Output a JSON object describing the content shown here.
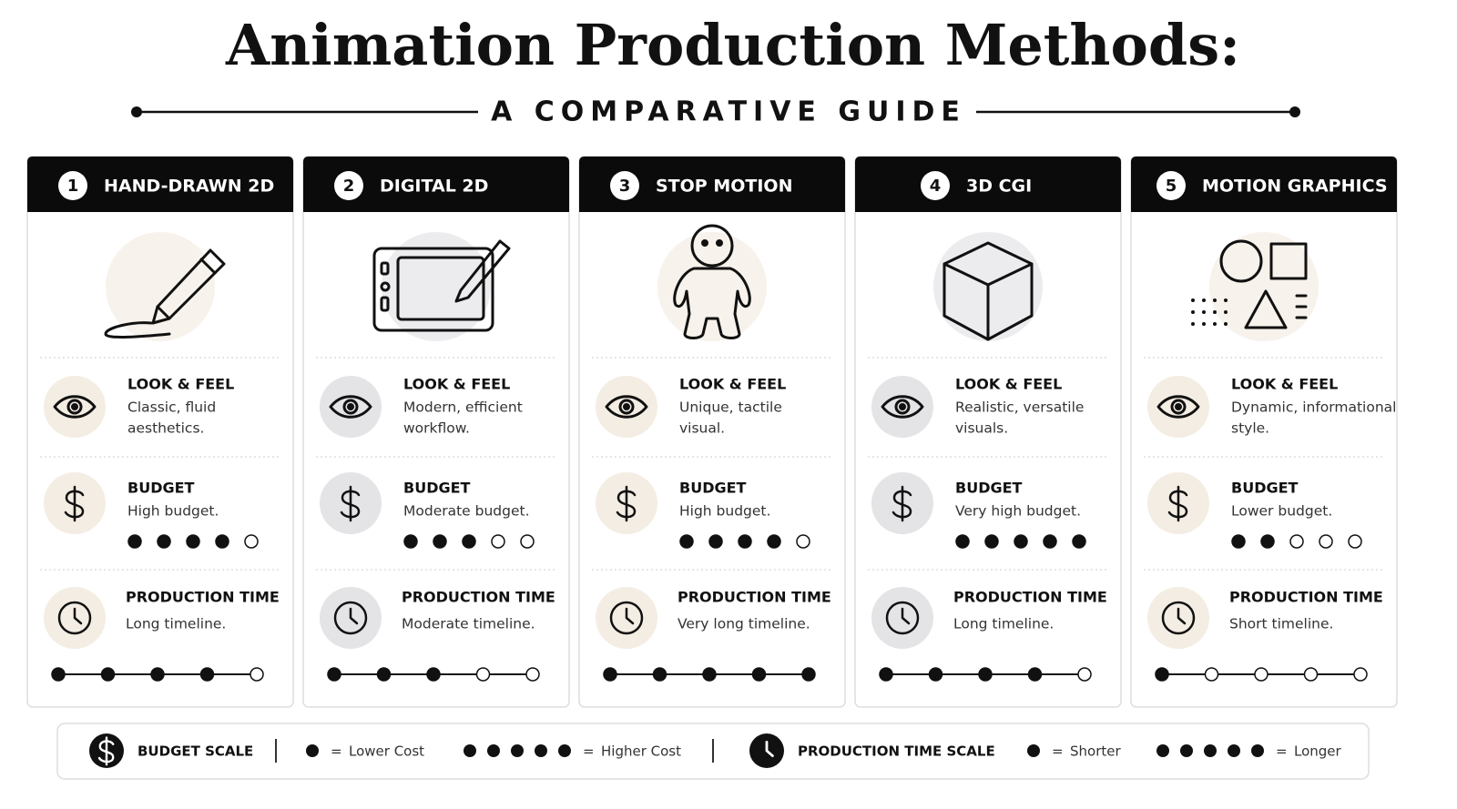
{
  "header": {
    "title": "Animation Production Methods:",
    "subtitle": "A COMPARATIVE GUIDE"
  },
  "methods": [
    {
      "number": "1",
      "name": "HAND-DRAWN 2D",
      "look_label": "LOOK & FEEL",
      "look_text": [
        "Classic, fluid",
        "aesthetics."
      ],
      "budget_label": "BUDGET",
      "budget_text": "High budget.",
      "budget_rating": 4,
      "time_label": "PRODUCTION TIME",
      "time_text": "Long timeline.",
      "time_rating": 4
    },
    {
      "number": "2",
      "name": "DIGITAL 2D",
      "look_label": "LOOK & FEEL",
      "look_text": [
        "Modern, efficient",
        "workflow."
      ],
      "budget_label": "BUDGET",
      "budget_text": "Moderate budget.",
      "budget_rating": 3,
      "time_label": "PRODUCTION TIME",
      "time_text": "Moderate timeline.",
      "time_rating": 3
    },
    {
      "number": "3",
      "name": "STOP MOTION",
      "look_label": "LOOK & FEEL",
      "look_text": [
        "Unique, tactile",
        "visual."
      ],
      "budget_label": "BUDGET",
      "budget_text": "High budget.",
      "budget_rating": 4,
      "time_label": "PRODUCTION TIME",
      "time_text": "Very long timeline.",
      "time_rating": 5
    },
    {
      "number": "4",
      "name": "3D CGI",
      "look_label": "LOOK & FEEL",
      "look_text": [
        "Realistic, versatile",
        "visuals."
      ],
      "budget_label": "BUDGET",
      "budget_text": "Very high budget.",
      "budget_rating": 5,
      "time_label": "PRODUCTION TIME",
      "time_text": "Long timeline.",
      "time_rating": 4
    },
    {
      "number": "5",
      "name": "MOTION GRAPHICS",
      "look_label": "LOOK & FEEL",
      "look_text": [
        "Dynamic, informational",
        "style."
      ],
      "budget_label": "BUDGET",
      "budget_text": "Lower budget.",
      "budget_rating": 2,
      "time_label": "PRODUCTION TIME",
      "time_text": "Short timeline.",
      "time_rating": 1
    }
  ],
  "legend": {
    "equals": "=",
    "budget": {
      "label": "BUDGET SCALE",
      "low_dots": 1,
      "low_text": "Lower Cost",
      "high_dots": 5,
      "high_text": "Higher Cost"
    },
    "time": {
      "label": "PRODUCTION TIME SCALE",
      "low_dots": 1,
      "low_text": "Shorter",
      "high_dots": 5,
      "high_text": "Longer"
    }
  }
}
